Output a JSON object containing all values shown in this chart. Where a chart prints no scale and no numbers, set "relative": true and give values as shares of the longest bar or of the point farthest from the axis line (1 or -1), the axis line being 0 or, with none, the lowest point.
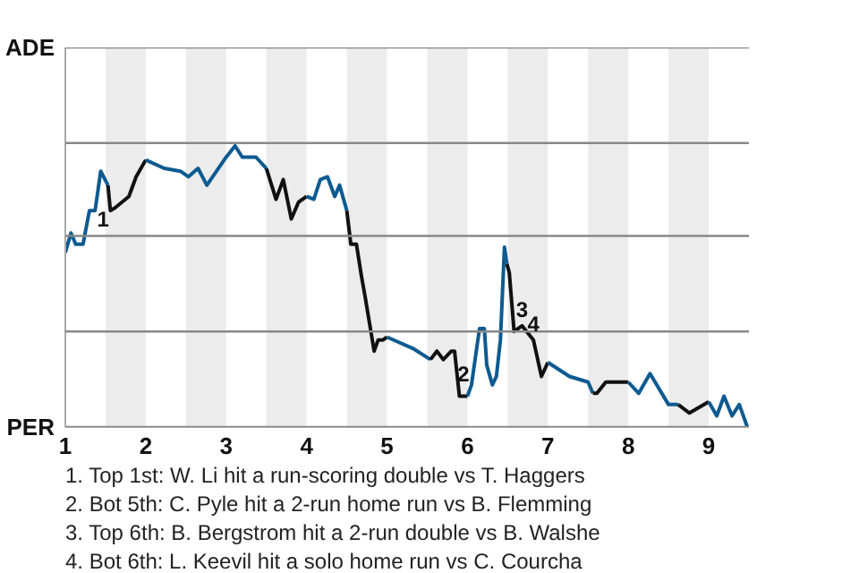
{
  "chart_data": {
    "type": "line",
    "relative": true,
    "xlim": [
      1,
      9.5
    ],
    "xticks": [
      1,
      2,
      3,
      4,
      5,
      6,
      7,
      8,
      9
    ],
    "grid": false,
    "marker": "none",
    "line_style": "solid",
    "ref_lines": [
      {
        "axis": "y",
        "value": 0,
        "label": "PER",
        "color": "#888888"
      },
      {
        "axis": "y",
        "value": 0.34,
        "label": null,
        "color": "#888888"
      },
      {
        "axis": "y",
        "value": 0.68,
        "label": null,
        "color": "#888888"
      },
      {
        "axis": "y",
        "value": 1.01,
        "label": null,
        "color": "#888888"
      },
      {
        "axis": "y",
        "value": 1.35,
        "label": "ADE",
        "color": "#888888"
      }
    ],
    "bands": [
      {
        "axis": "x",
        "from": 1.5,
        "to": 2,
        "color": "#ececec"
      },
      {
        "axis": "x",
        "from": 2.5,
        "to": 3,
        "color": "#ececec"
      },
      {
        "axis": "x",
        "from": 3.5,
        "to": 4,
        "color": "#ececec"
      },
      {
        "axis": "x",
        "from": 4.5,
        "to": 5,
        "color": "#ececec"
      },
      {
        "axis": "x",
        "from": 5.5,
        "to": 6,
        "color": "#ececec"
      },
      {
        "axis": "x",
        "from": 6.5,
        "to": 7,
        "color": "#ececec"
      },
      {
        "axis": "x",
        "from": 7.5,
        "to": 8,
        "color": "#ececec"
      },
      {
        "axis": "x",
        "from": 8.5,
        "to": 9,
        "color": "#ececec"
      }
    ],
    "series": [
      {
        "color": "#0d5a91",
        "x": [
          1,
          1.07,
          1.13,
          1.22,
          1.3,
          1.37,
          1.44,
          1.53
        ],
        "values": [
          0.62,
          0.69,
          0.65,
          0.65,
          0.77,
          0.77,
          0.91,
          0.86
        ]
      },
      {
        "color": "#111111",
        "x": [
          1.53,
          1.56,
          1.62,
          1.79,
          1.88,
          2
        ],
        "values": [
          0.86,
          0.77,
          0.78,
          0.82,
          0.89,
          0.95
        ]
      },
      {
        "color": "#0d5a91",
        "x": [
          2,
          2.23,
          2.43,
          2.53,
          2.65,
          2.76,
          3,
          3.11,
          3.2,
          3.37,
          3.5
        ],
        "values": [
          0.95,
          0.92,
          0.91,
          0.89,
          0.92,
          0.86,
          0.96,
          1,
          0.96,
          0.96,
          0.92
        ]
      },
      {
        "color": "#111111",
        "x": [
          3.5,
          3.62,
          3.71,
          3.81,
          3.9,
          4
        ],
        "values": [
          0.92,
          0.81,
          0.88,
          0.74,
          0.8,
          0.82
        ]
      },
      {
        "color": "#0d5a91",
        "x": [
          4,
          4.09,
          4.17,
          4.26,
          4.35,
          4.41,
          4.5
        ],
        "values": [
          0.82,
          0.81,
          0.88,
          0.89,
          0.82,
          0.86,
          0.77
        ]
      },
      {
        "color": "#111111",
        "x": [
          4.5,
          4.55,
          4.62,
          4.68,
          4.73,
          4.84,
          4.89,
          4.95,
          5
        ],
        "values": [
          0.77,
          0.65,
          0.65,
          0.54,
          0.46,
          0.27,
          0.31,
          0.31,
          0.32
        ]
      },
      {
        "color": "#0d5a91",
        "x": [
          5,
          5.32,
          5.54
        ],
        "values": [
          0.32,
          0.28,
          0.24
        ]
      },
      {
        "color": "#111111",
        "x": [
          5.54,
          5.62,
          5.7,
          5.8,
          5.84,
          5.9,
          6
        ],
        "values": [
          0.24,
          0.27,
          0.24,
          0.27,
          0.27,
          0.11,
          0.11
        ]
      },
      {
        "color": "#0d5a91",
        "x": [
          6,
          6.05,
          6.15,
          6.21,
          6.24,
          6.31,
          6.36,
          6.41,
          6.46,
          6.49
        ],
        "values": [
          0.11,
          0.15,
          0.35,
          0.35,
          0.22,
          0.15,
          0.18,
          0.31,
          0.64,
          0.58
        ]
      },
      {
        "color": "#111111",
        "x": [
          6.49,
          6.52,
          6.58,
          6.68,
          6.82,
          6.92,
          7
        ],
        "values": [
          0.58,
          0.55,
          0.34,
          0.36,
          0.31,
          0.18,
          0.23
        ]
      },
      {
        "color": "#0d5a91",
        "x": [
          7,
          7.27,
          7.5,
          7.56
        ],
        "values": [
          0.23,
          0.18,
          0.16,
          0.12
        ]
      },
      {
        "color": "#111111",
        "x": [
          7.56,
          7.61,
          7.72,
          8
        ],
        "values": [
          0.12,
          0.12,
          0.16,
          0.16
        ]
      },
      {
        "color": "#0d5a91",
        "x": [
          8,
          8.13,
          8.27,
          8.5,
          8.62
        ],
        "values": [
          0.16,
          0.12,
          0.19,
          0.08,
          0.08
        ]
      },
      {
        "color": "#111111",
        "x": [
          8.62,
          8.76,
          9
        ],
        "values": [
          0.08,
          0.05,
          0.09
        ]
      },
      {
        "color": "#0d5a91",
        "x": [
          9,
          9.1,
          9.19,
          9.29,
          9.38,
          9.48
        ],
        "values": [
          0.09,
          0.04,
          0.11,
          0.04,
          0.08,
          0
        ]
      }
    ],
    "annotations": [
      {
        "text": "1",
        "x": 1.47,
        "y": 0.68
      },
      {
        "text": "2",
        "x": 5.95,
        "y": 0.13
      },
      {
        "text": "3",
        "x": 6.68,
        "y": 0.36
      },
      {
        "text": "4",
        "x": 6.82,
        "y": 0.31
      },
      "1. Top 1st: W. Li hit a run-scoring double vs T. Haggers",
      "2. Bot 5th: C. Pyle hit a 2-run home run vs B. Flemming",
      "3. Top 6th: B. Bergstrom hit a 2-run double vs B. Walshe",
      "4. Bot 6th: L. Keevil hit a solo home run vs C. Courcha"
    ]
  }
}
